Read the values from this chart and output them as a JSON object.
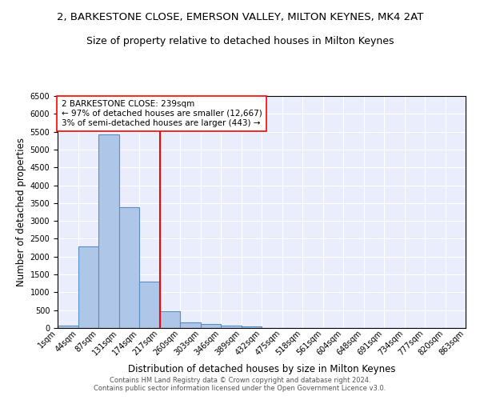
{
  "title_line1": "2, BARKESTONE CLOSE, EMERSON VALLEY, MILTON KEYNES, MK4 2AT",
  "title_line2": "Size of property relative to detached houses in Milton Keynes",
  "xlabel": "Distribution of detached houses by size in Milton Keynes",
  "ylabel": "Number of detached properties",
  "footnote": "Contains HM Land Registry data © Crown copyright and database right 2024.\nContains public sector information licensed under the Open Government Licence v3.0.",
  "bin_labels": [
    "1sqm",
    "44sqm",
    "87sqm",
    "131sqm",
    "174sqm",
    "217sqm",
    "260sqm",
    "303sqm",
    "346sqm",
    "389sqm",
    "432sqm",
    "475sqm",
    "518sqm",
    "561sqm",
    "604sqm",
    "648sqm",
    "691sqm",
    "734sqm",
    "777sqm",
    "820sqm",
    "863sqm"
  ],
  "bar_values": [
    70,
    2280,
    5420,
    3390,
    1310,
    480,
    160,
    110,
    75,
    50,
    0,
    0,
    0,
    0,
    0,
    0,
    0,
    0,
    0,
    0
  ],
  "bar_color": "#aec6e8",
  "bar_edge_color": "#5a8fc2",
  "vline_x": 5.0,
  "vline_color": "red",
  "annotation_text": "2 BARKESTONE CLOSE: 239sqm\n← 97% of detached houses are smaller (12,667)\n3% of semi-detached houses are larger (443) →",
  "annotation_box_color": "white",
  "annotation_box_edge_color": "red",
  "ylim": [
    0,
    6500
  ],
  "yticks": [
    0,
    500,
    1000,
    1500,
    2000,
    2500,
    3000,
    3500,
    4000,
    4500,
    5000,
    5500,
    6000,
    6500
  ],
  "plot_bg_color": "#eaeefc",
  "title1_fontsize": 9.5,
  "title2_fontsize": 9,
  "axis_label_fontsize": 8.5,
  "tick_fontsize": 7,
  "annotation_fontsize": 7.5,
  "footnote_fontsize": 6
}
